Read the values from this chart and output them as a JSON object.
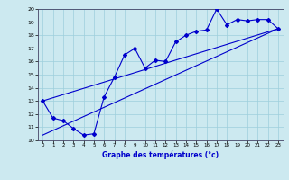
{
  "xlabel": "Graphe des températures (°c)",
  "xlim": [
    -0.5,
    23.5
  ],
  "ylim": [
    10,
    20
  ],
  "xticks": [
    0,
    1,
    2,
    3,
    4,
    5,
    6,
    7,
    8,
    9,
    10,
    11,
    12,
    13,
    14,
    15,
    16,
    17,
    18,
    19,
    20,
    21,
    22,
    23
  ],
  "yticks": [
    10,
    11,
    12,
    13,
    14,
    15,
    16,
    17,
    18,
    19,
    20
  ],
  "bg_color": "#cce9f0",
  "line_color": "#0000cc",
  "line1": {
    "x": [
      0,
      1,
      2,
      3,
      4,
      5,
      6,
      7,
      8,
      9,
      10,
      11,
      12,
      13,
      14,
      15,
      16,
      17,
      18,
      19,
      20,
      21,
      22,
      23
    ],
    "y": [
      13,
      11.7,
      11.5,
      10.9,
      10.4,
      10.5,
      13.3,
      14.8,
      16.5,
      17,
      15.5,
      16.1,
      16,
      17.5,
      18,
      18.3,
      18.4,
      20,
      18.8,
      19.2,
      19.1,
      19.2,
      19.2,
      18.5
    ]
  },
  "line2": {
    "x": [
      0,
      23
    ],
    "y": [
      13,
      18.5
    ]
  },
  "line3": {
    "x": [
      0,
      23
    ],
    "y": [
      10.4,
      18.5
    ]
  }
}
